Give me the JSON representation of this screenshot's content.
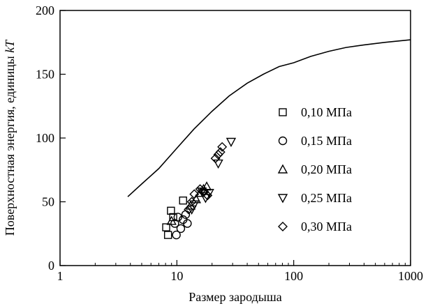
{
  "chart_data": {
    "type": "scatter",
    "title": "",
    "xlabel": "Размер зародыша",
    "ylabel_parts": [
      "Поверхностная энергия, единицы ",
      "kT"
    ],
    "x_scale": "log",
    "xlim": [
      1,
      1000
    ],
    "ylim": [
      0,
      200
    ],
    "x_ticks": [
      1,
      10,
      100,
      1000
    ],
    "x_tick_labels": [
      "1",
      "10",
      "100",
      "1000"
    ],
    "y_ticks": [
      0,
      50,
      100,
      150,
      200
    ],
    "y_tick_labels": [
      "0",
      "50",
      "100",
      "150",
      "200"
    ],
    "grid": false,
    "legend_position": "right",
    "curve": {
      "x": [
        3.8,
        5,
        7,
        10,
        14,
        20,
        28,
        40,
        55,
        75,
        100,
        140,
        200,
        280,
        400,
        600,
        1000
      ],
      "y": [
        54,
        64,
        76,
        92,
        107,
        121,
        133,
        143,
        150,
        156,
        159,
        164,
        168,
        171,
        173,
        175,
        177
      ]
    },
    "series": [
      {
        "name": "0,10 МПа",
        "marker": "square",
        "x": [
          8.1,
          8.4,
          8.9,
          9.3,
          11.3
        ],
        "y": [
          30,
          24,
          43,
          38,
          51
        ]
      },
      {
        "name": "0,15 МПа",
        "marker": "circle",
        "x": [
          9.6,
          9.9,
          10.2,
          10.8,
          11.3,
          11.9,
          12.3
        ],
        "y": [
          33,
          24,
          38,
          29,
          36,
          40,
          33
        ]
      },
      {
        "name": "0,20 МПа",
        "marker": "triangle-up",
        "x": [
          9.0,
          13.1,
          14.6,
          15.8,
          16.9,
          18.0
        ],
        "y": [
          35,
          47,
          52,
          57,
          60,
          62
        ]
      },
      {
        "name": "0,25 МПа",
        "marker": "triangle-down",
        "x": [
          13.4,
          14.1,
          16.4,
          17.6,
          18.9,
          22.6,
          29.1
        ],
        "y": [
          44,
          48,
          58,
          53,
          57,
          80,
          97
        ]
      },
      {
        "name": "0,30 МПа",
        "marker": "diamond",
        "x": [
          12.6,
          13.4,
          14.1,
          15.8,
          17.1,
          18.3,
          21.4,
          22.6,
          23.6,
          24.4
        ],
        "y": [
          44,
          50,
          56,
          60,
          58,
          55,
          84,
          87,
          89,
          93
        ]
      }
    ]
  }
}
